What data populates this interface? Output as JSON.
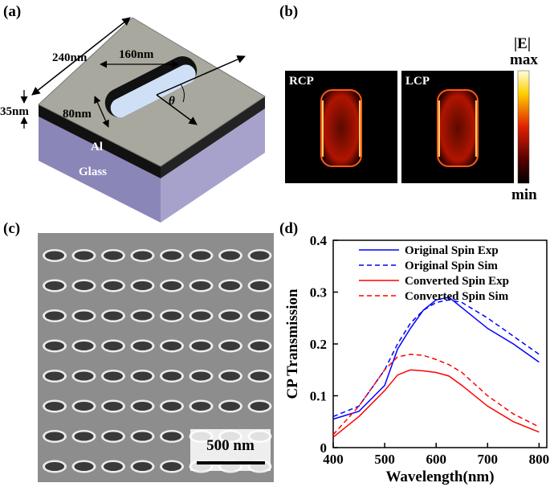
{
  "panels": {
    "a": {
      "label": "(a)",
      "width": "240nm",
      "length": "160nm",
      "slot_width": "80nm",
      "thickness": "35nm",
      "metal": "Al",
      "substrate": "Glass",
      "angle": "θ"
    },
    "b": {
      "label": "(b)",
      "left": "RCP",
      "right": "LCP",
      "colorbar_title": "|E|",
      "colorbar_max": "max",
      "colorbar_min": "min"
    },
    "c": {
      "label": "(c)",
      "scale_bar": "500 nm"
    },
    "d": {
      "label": "(d)"
    }
  },
  "chart_data": {
    "type": "line",
    "xlabel": "Wavelength(nm)",
    "ylabel": "CP Transmission",
    "x": [
      400,
      450,
      500,
      525,
      550,
      575,
      600,
      625,
      650,
      700,
      750,
      800
    ],
    "series": [
      {
        "name": "Original Spin Exp",
        "color": "#0000ff",
        "dashed": false,
        "values": [
          0.055,
          0.07,
          0.12,
          0.19,
          0.23,
          0.265,
          0.285,
          0.29,
          0.27,
          0.23,
          0.2,
          0.165
        ]
      },
      {
        "name": "Original Spin Sim",
        "color": "#0000ff",
        "dashed": true,
        "values": [
          0.06,
          0.08,
          0.15,
          0.2,
          0.24,
          0.265,
          0.28,
          0.285,
          0.28,
          0.25,
          0.215,
          0.18
        ]
      },
      {
        "name": "Converted Spin Exp",
        "color": "#ff0000",
        "dashed": false,
        "values": [
          0.02,
          0.06,
          0.11,
          0.14,
          0.15,
          0.148,
          0.145,
          0.138,
          0.12,
          0.08,
          0.05,
          0.03
        ]
      },
      {
        "name": "Converted Spin Sim",
        "color": "#ff0000",
        "dashed": true,
        "values": [
          0.025,
          0.08,
          0.15,
          0.175,
          0.18,
          0.178,
          0.17,
          0.16,
          0.145,
          0.1,
          0.065,
          0.04
        ]
      }
    ],
    "xlim": [
      400,
      815
    ],
    "ylim": [
      0,
      0.4
    ],
    "xticks": [
      400,
      500,
      600,
      700,
      800
    ],
    "yticks": [
      0,
      0.1,
      0.2,
      0.3,
      0.4
    ],
    "legend": "upper right"
  }
}
